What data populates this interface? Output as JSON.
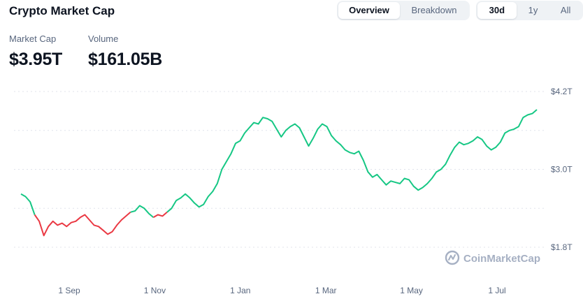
{
  "header": {
    "title": "Crypto Market Cap"
  },
  "view_tabs": [
    {
      "label": "Overview",
      "active": true
    },
    {
      "label": "Breakdown",
      "active": false
    }
  ],
  "range_tabs": [
    {
      "label": "30d",
      "active": true
    },
    {
      "label": "1y",
      "active": false
    },
    {
      "label": "All",
      "active": false
    }
  ],
  "stats": {
    "market_cap": {
      "label": "Market Cap",
      "value": "$3.95T"
    },
    "volume": {
      "label": "Volume",
      "value": "$161.05B"
    }
  },
  "watermark": {
    "text": "CoinMarketCap",
    "icon": "coinmarketcap-logo-icon"
  },
  "colors": {
    "up": "#16c784",
    "down": "#ea3943",
    "grid": "#e0e3eb",
    "axis_text": "#58667e"
  },
  "chart_data": {
    "type": "line",
    "y_ticks": [
      {
        "value": 4.2,
        "label": "$4.2T"
      },
      {
        "value": 3.0,
        "label": "$3.0T"
      },
      {
        "value": 1.8,
        "label": "$1.8T"
      }
    ],
    "x_ticks": [
      "1 Sep",
      "1 Nov",
      "1 Jan",
      "1 Mar",
      "1 May",
      "1 Jul"
    ],
    "ylim": [
      1.8,
      4.2
    ],
    "series": [
      {
        "color_up": "#16c784",
        "color_down": "#ea3943",
        "baseline": 2.31,
        "values": [
          2.62,
          2.58,
          2.5,
          2.3,
          2.2,
          1.98,
          2.12,
          2.2,
          2.14,
          2.17,
          2.12,
          2.18,
          2.2,
          2.26,
          2.3,
          2.22,
          2.14,
          2.12,
          2.06,
          2.0,
          2.04,
          2.14,
          2.22,
          2.28,
          2.34,
          2.36,
          2.44,
          2.4,
          2.32,
          2.26,
          2.3,
          2.28,
          2.34,
          2.4,
          2.52,
          2.56,
          2.62,
          2.56,
          2.48,
          2.42,
          2.46,
          2.58,
          2.66,
          2.78,
          3.0,
          3.12,
          3.24,
          3.4,
          3.44,
          3.56,
          3.64,
          3.72,
          3.7,
          3.8,
          3.78,
          3.74,
          3.62,
          3.5,
          3.6,
          3.66,
          3.7,
          3.64,
          3.5,
          3.36,
          3.48,
          3.62,
          3.7,
          3.66,
          3.52,
          3.44,
          3.38,
          3.3,
          3.26,
          3.24,
          3.28,
          3.14,
          2.96,
          2.88,
          2.92,
          2.84,
          2.76,
          2.82,
          2.8,
          2.78,
          2.86,
          2.84,
          2.74,
          2.68,
          2.72,
          2.78,
          2.86,
          2.96,
          3.0,
          3.08,
          3.22,
          3.34,
          3.42,
          3.38,
          3.4,
          3.44,
          3.5,
          3.46,
          3.36,
          3.3,
          3.34,
          3.42,
          3.56,
          3.6,
          3.62,
          3.66,
          3.8,
          3.84,
          3.86,
          3.92
        ]
      }
    ]
  }
}
